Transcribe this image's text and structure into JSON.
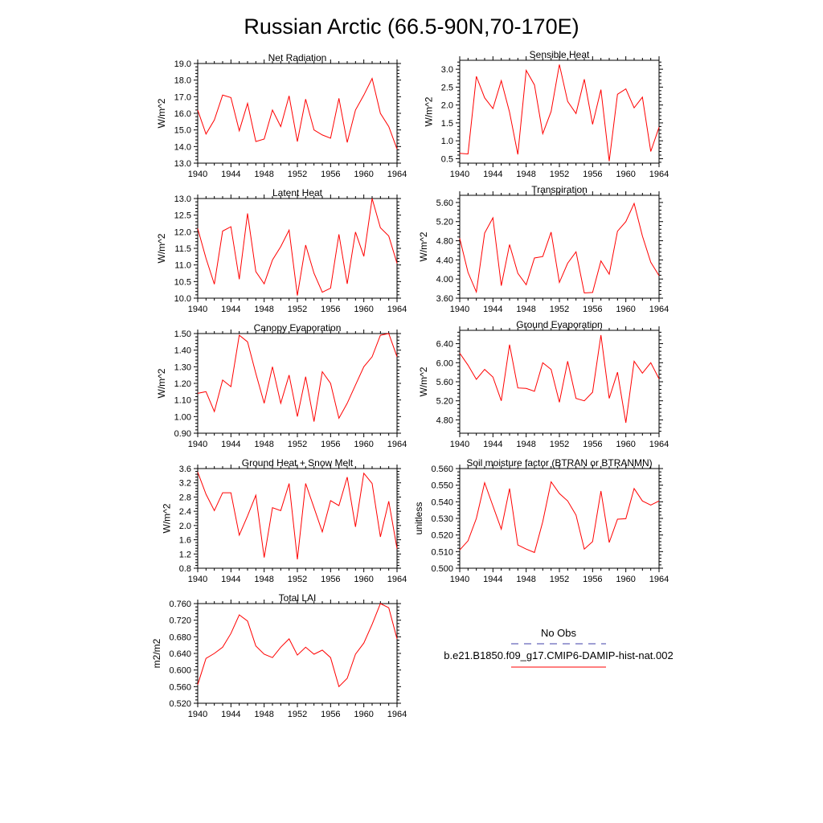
{
  "figure": {
    "title": "Russian Arctic (66.5-90N,70-170E)"
  },
  "colors": {
    "model_line": "#ff0000",
    "obs_line": "#3f3faa",
    "axis": "#000000"
  },
  "legend": {
    "obs_label": "No Obs",
    "model_label": "b.e21.B1850.f09_g17.CMIP6-DAMIP-hist-nat.002"
  },
  "chart_data": [
    {
      "type": "line",
      "title": "Net Radiation",
      "ylabel": "W/m^2",
      "xlim": [
        1940,
        1964
      ],
      "ylim": [
        13.0,
        19.0
      ],
      "xticks": [
        "1940",
        "1944",
        "1948",
        "1952",
        "1956",
        "1960",
        "1964"
      ],
      "yticks": [
        "13.0",
        "14.0",
        "15.0",
        "16.0",
        "17.0",
        "18.0",
        "19.0"
      ],
      "x": [
        1940,
        1941,
        1942,
        1943,
        1944,
        1945,
        1946,
        1947,
        1948,
        1949,
        1950,
        1951,
        1952,
        1953,
        1954,
        1955,
        1956,
        1957,
        1958,
        1959,
        1960,
        1961,
        1962,
        1963,
        1964
      ],
      "values": [
        16.2,
        14.75,
        15.6,
        17.1,
        16.95,
        14.95,
        16.6,
        14.3,
        14.45,
        16.2,
        15.2,
        17.05,
        14.3,
        16.85,
        15.0,
        14.7,
        14.5,
        16.9,
        14.25,
        16.2,
        17.1,
        18.1,
        16.0,
        15.2,
        13.85
      ]
    },
    {
      "type": "line",
      "title": "Sensible Heat",
      "ylabel": "W/m^2",
      "xlim": [
        1940,
        1964
      ],
      "ylim": [
        0.375,
        3.25
      ],
      "xticks": [
        "1940",
        "1944",
        "1948",
        "1952",
        "1956",
        "1960",
        "1964"
      ],
      "yticks": [
        "0.5",
        "1.0",
        "1.5",
        "2.0",
        "2.5",
        "3.0"
      ],
      "x": [
        1940,
        1941,
        1942,
        1943,
        1944,
        1945,
        1946,
        1947,
        1948,
        1949,
        1950,
        1951,
        1952,
        1953,
        1954,
        1955,
        1956,
        1957,
        1958,
        1959,
        1960,
        1961,
        1962,
        1963,
        1964
      ],
      "values": [
        0.65,
        0.63,
        2.8,
        2.2,
        1.9,
        2.68,
        1.8,
        0.62,
        2.97,
        2.56,
        1.2,
        1.82,
        3.13,
        2.1,
        1.76,
        2.72,
        1.46,
        2.43,
        0.43,
        2.3,
        2.45,
        1.92,
        2.22,
        0.7,
        1.38
      ]
    },
    {
      "type": "line",
      "title": "Latent Heat",
      "ylabel": "W/m^2",
      "xlim": [
        1940,
        1964
      ],
      "ylim": [
        10.0,
        13.0
      ],
      "xticks": [
        "1940",
        "1944",
        "1948",
        "1952",
        "1956",
        "1960",
        "1964"
      ],
      "yticks": [
        "10.0",
        "10.5",
        "11.0",
        "11.5",
        "12.0",
        "12.5",
        "13.0"
      ],
      "x": [
        1940,
        1941,
        1942,
        1943,
        1944,
        1945,
        1946,
        1947,
        1948,
        1949,
        1950,
        1951,
        1952,
        1953,
        1954,
        1955,
        1956,
        1957,
        1958,
        1959,
        1960,
        1961,
        1962,
        1963,
        1964
      ],
      "values": [
        12.1,
        11.2,
        10.42,
        12.02,
        12.15,
        10.57,
        12.55,
        10.8,
        10.43,
        11.15,
        11.55,
        12.05,
        10.08,
        11.6,
        10.75,
        10.18,
        10.3,
        11.92,
        10.43,
        11.99,
        11.26,
        13.0,
        12.12,
        11.87,
        11.05
      ]
    },
    {
      "type": "line",
      "title": "Transpiration",
      "ylabel": "W/m^2",
      "xlim": [
        1940,
        1964
      ],
      "ylim": [
        3.6,
        5.75
      ],
      "xticks": [
        "1940",
        "1944",
        "1948",
        "1952",
        "1956",
        "1960",
        "1964"
      ],
      "yticks": [
        "3.60",
        "4.00",
        "4.40",
        "4.80",
        "5.20",
        "5.60"
      ],
      "x": [
        1940,
        1941,
        1942,
        1943,
        1944,
        1945,
        1946,
        1947,
        1948,
        1949,
        1950,
        1951,
        1952,
        1953,
        1954,
        1955,
        1956,
        1957,
        1958,
        1959,
        1960,
        1961,
        1962,
        1963,
        1964
      ],
      "values": [
        4.85,
        4.14,
        3.73,
        4.96,
        5.28,
        3.86,
        4.72,
        4.12,
        3.88,
        4.44,
        4.47,
        4.98,
        3.93,
        4.33,
        4.57,
        3.71,
        3.72,
        4.38,
        4.1,
        5.0,
        5.2,
        5.58,
        4.9,
        4.35,
        4.07
      ]
    },
    {
      "type": "line",
      "title": "Canopy Evaporation",
      "ylabel": "W/m^2",
      "xlim": [
        1940,
        1964
      ],
      "ylim": [
        0.9,
        1.5
      ],
      "xticks": [
        "1940",
        "1944",
        "1948",
        "1952",
        "1956",
        "1960",
        "1964"
      ],
      "yticks": [
        "0.90",
        "1.00",
        "1.10",
        "1.20",
        "1.30",
        "1.40",
        "1.50"
      ],
      "x": [
        1940,
        1941,
        1942,
        1943,
        1944,
        1945,
        1946,
        1947,
        1948,
        1949,
        1950,
        1951,
        1952,
        1953,
        1954,
        1955,
        1956,
        1957,
        1958,
        1959,
        1960,
        1961,
        1962,
        1963,
        1964
      ],
      "values": [
        1.14,
        1.15,
        1.03,
        1.22,
        1.18,
        1.49,
        1.45,
        1.26,
        1.08,
        1.3,
        1.08,
        1.25,
        1.0,
        1.24,
        0.97,
        1.27,
        1.2,
        0.99,
        1.08,
        1.19,
        1.3,
        1.36,
        1.49,
        1.5,
        1.36
      ]
    },
    {
      "type": "line",
      "title": "Ground Evaporation",
      "ylabel": "W/m^2",
      "xlim": [
        1940,
        1964
      ],
      "ylim": [
        4.52,
        6.68
      ],
      "xticks": [
        "1940",
        "1944",
        "1948",
        "1952",
        "1956",
        "1960",
        "1964"
      ],
      "yticks": [
        "4.80",
        "5.20",
        "5.60",
        "6.00",
        "6.40"
      ],
      "x": [
        1940,
        1941,
        1942,
        1943,
        1944,
        1945,
        1946,
        1947,
        1948,
        1949,
        1950,
        1951,
        1952,
        1953,
        1954,
        1955,
        1956,
        1957,
        1958,
        1959,
        1960,
        1961,
        1962,
        1963,
        1964
      ],
      "values": [
        6.2,
        5.95,
        5.65,
        5.86,
        5.7,
        5.2,
        6.38,
        5.47,
        5.46,
        5.4,
        6.0,
        5.86,
        5.17,
        6.03,
        5.25,
        5.2,
        5.38,
        6.58,
        5.25,
        5.8,
        4.74,
        6.03,
        5.78,
        6.0,
        5.66
      ]
    },
    {
      "type": "line",
      "title": "Ground Heat + Snow Melt",
      "ylabel": "W/m^2",
      "xlim": [
        1940,
        1964
      ],
      "ylim": [
        0.8,
        3.6
      ],
      "xticks": [
        "1940",
        "1944",
        "1948",
        "1952",
        "1956",
        "1960",
        "1964"
      ],
      "yticks": [
        "0.8",
        "1.2",
        "1.6",
        "2.0",
        "2.4",
        "2.8",
        "3.2",
        "3.6"
      ],
      "x": [
        1940,
        1941,
        1942,
        1943,
        1944,
        1945,
        1946,
        1947,
        1948,
        1949,
        1950,
        1951,
        1952,
        1953,
        1954,
        1955,
        1956,
        1957,
        1958,
        1959,
        1960,
        1961,
        1962,
        1963,
        1964
      ],
      "values": [
        3.5,
        2.88,
        2.42,
        2.92,
        2.92,
        1.73,
        2.27,
        2.85,
        1.1,
        2.5,
        2.42,
        3.18,
        1.05,
        3.18,
        2.5,
        1.82,
        2.7,
        2.56,
        3.36,
        1.96,
        3.47,
        3.18,
        1.68,
        2.68,
        1.35
      ]
    },
    {
      "type": "line",
      "title": "Soil moisture factor (BTRAN or BTRANMN)",
      "ylabel": "unitless",
      "xlim": [
        1940,
        1964
      ],
      "ylim": [
        0.5,
        0.56
      ],
      "xticks": [
        "1940",
        "1944",
        "1948",
        "1952",
        "1956",
        "1960",
        "1964"
      ],
      "yticks": [
        "0.500",
        "0.510",
        "0.520",
        "0.530",
        "0.540",
        "0.550",
        "0.560"
      ],
      "x": [
        1940,
        1941,
        1942,
        1943,
        1944,
        1945,
        1946,
        1947,
        1948,
        1949,
        1950,
        1951,
        1952,
        1953,
        1954,
        1955,
        1956,
        1957,
        1958,
        1959,
        1960,
        1961,
        1962,
        1963,
        1964
      ],
      "values": [
        0.511,
        0.5165,
        0.53,
        0.5515,
        0.5375,
        0.5235,
        0.548,
        0.514,
        0.5115,
        0.5095,
        0.528,
        0.552,
        0.545,
        0.5405,
        0.532,
        0.5115,
        0.516,
        0.5465,
        0.5155,
        0.5295,
        0.5298,
        0.548,
        0.5405,
        0.538,
        0.5405
      ]
    },
    {
      "type": "line",
      "title": "Total LAI",
      "ylabel": "m2/m2",
      "xlim": [
        1940,
        1964
      ],
      "ylim": [
        0.52,
        0.76
      ],
      "xticks": [
        "1940",
        "1944",
        "1948",
        "1952",
        "1956",
        "1960",
        "1964"
      ],
      "yticks": [
        "0.520",
        "0.560",
        "0.600",
        "0.640",
        "0.680",
        "0.720",
        "0.760"
      ],
      "x": [
        1940,
        1941,
        1942,
        1943,
        1944,
        1945,
        1946,
        1947,
        1948,
        1949,
        1950,
        1951,
        1952,
        1953,
        1954,
        1955,
        1956,
        1957,
        1958,
        1959,
        1960,
        1961,
        1962,
        1963,
        1964
      ],
      "values": [
        0.565,
        0.628,
        0.64,
        0.655,
        0.688,
        0.733,
        0.718,
        0.658,
        0.638,
        0.63,
        0.655,
        0.675,
        0.636,
        0.655,
        0.638,
        0.648,
        0.63,
        0.56,
        0.58,
        0.638,
        0.665,
        0.71,
        0.76,
        0.75,
        0.675
      ]
    }
  ]
}
